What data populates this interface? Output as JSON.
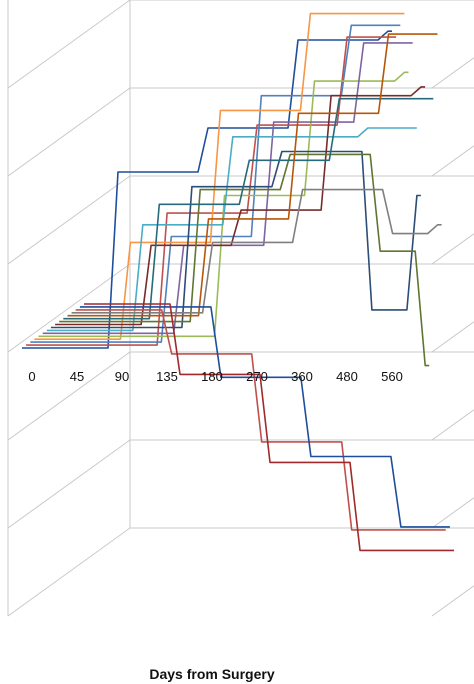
{
  "chart_data": {
    "type": "line",
    "view": "3d-perspective",
    "title": "",
    "xlabel": "Days from Surgery",
    "categories": [
      "0",
      "45",
      "90",
      "135",
      "180",
      "270",
      "360",
      "480",
      "560"
    ],
    "grid": true,
    "series": [
      {
        "color": "#1f4e9c",
        "values": [
          0,
          0,
          2,
          2,
          2.5,
          2.5,
          3.5,
          3.5,
          3.6
        ]
      },
      {
        "color": "#c0504d",
        "values": [
          0,
          0,
          0,
          1.5,
          1.5,
          2.5,
          2.5,
          3.5,
          3.5
        ]
      },
      {
        "color": "#4f81bd",
        "values": [
          0,
          0,
          0,
          1.2,
          1.2,
          2.8,
          2.8,
          3.6,
          3.6
        ]
      },
      {
        "color": "#f79646",
        "values": [
          0,
          0,
          1.1,
          1.1,
          2.6,
          2.6,
          3.7,
          3.7,
          3.7
        ]
      },
      {
        "color": "#9bbb59",
        "values": [
          0,
          0,
          0,
          0,
          1.6,
          1.6,
          2.9,
          2.9,
          3.0
        ]
      },
      {
        "color": "#8064a2",
        "values": [
          0,
          0,
          0,
          1.0,
          1.0,
          2.4,
          2.4,
          3.3,
          3.3
        ]
      },
      {
        "color": "#4bacc6",
        "values": [
          0,
          0,
          1.2,
          1.2,
          2.2,
          2.2,
          2.2,
          2.3,
          2.3
        ]
      },
      {
        "color": "#2c4d75",
        "values": [
          0,
          0,
          0,
          1.6,
          1.6,
          2.0,
          2.0,
          0.2,
          1.5
        ]
      },
      {
        "color": "#772c2a",
        "values": [
          0,
          0,
          0.9,
          0.9,
          1.3,
          1.3,
          2.6,
          2.6,
          2.7
        ]
      },
      {
        "color": "#5f7530",
        "values": [
          0,
          0,
          0,
          1.5,
          1.5,
          1.9,
          1.9,
          0.8,
          -0.5
        ]
      },
      {
        "color": "#276a7c",
        "values": [
          0,
          0,
          1.3,
          1.3,
          1.8,
          1.8,
          2.5,
          2.5,
          2.5
        ]
      },
      {
        "color": "#b65708",
        "values": [
          0,
          0,
          0,
          1.1,
          1.1,
          2.3,
          2.3,
          3.2,
          3.2
        ]
      },
      {
        "color": "#7f7f7f",
        "values": [
          0,
          0,
          0,
          0.8,
          0.8,
          1.4,
          1.4,
          0.9,
          1.0
        ]
      },
      {
        "color": "#c0504d",
        "values": [
          0,
          0,
          -0.5,
          -0.5,
          -1.5,
          -1.5,
          -2.5,
          -2.5,
          -2.5
        ]
      },
      {
        "color": "#1f4e9c",
        "values": [
          0,
          0,
          0,
          -0.8,
          -0.8,
          -1.7,
          -1.7,
          -2.5,
          -2.5
        ]
      },
      {
        "color": "#a0292b",
        "values": [
          0,
          0,
          -0.8,
          -0.8,
          -1.8,
          -1.8,
          -2.8,
          -2.8,
          -2.8
        ]
      }
    ]
  }
}
